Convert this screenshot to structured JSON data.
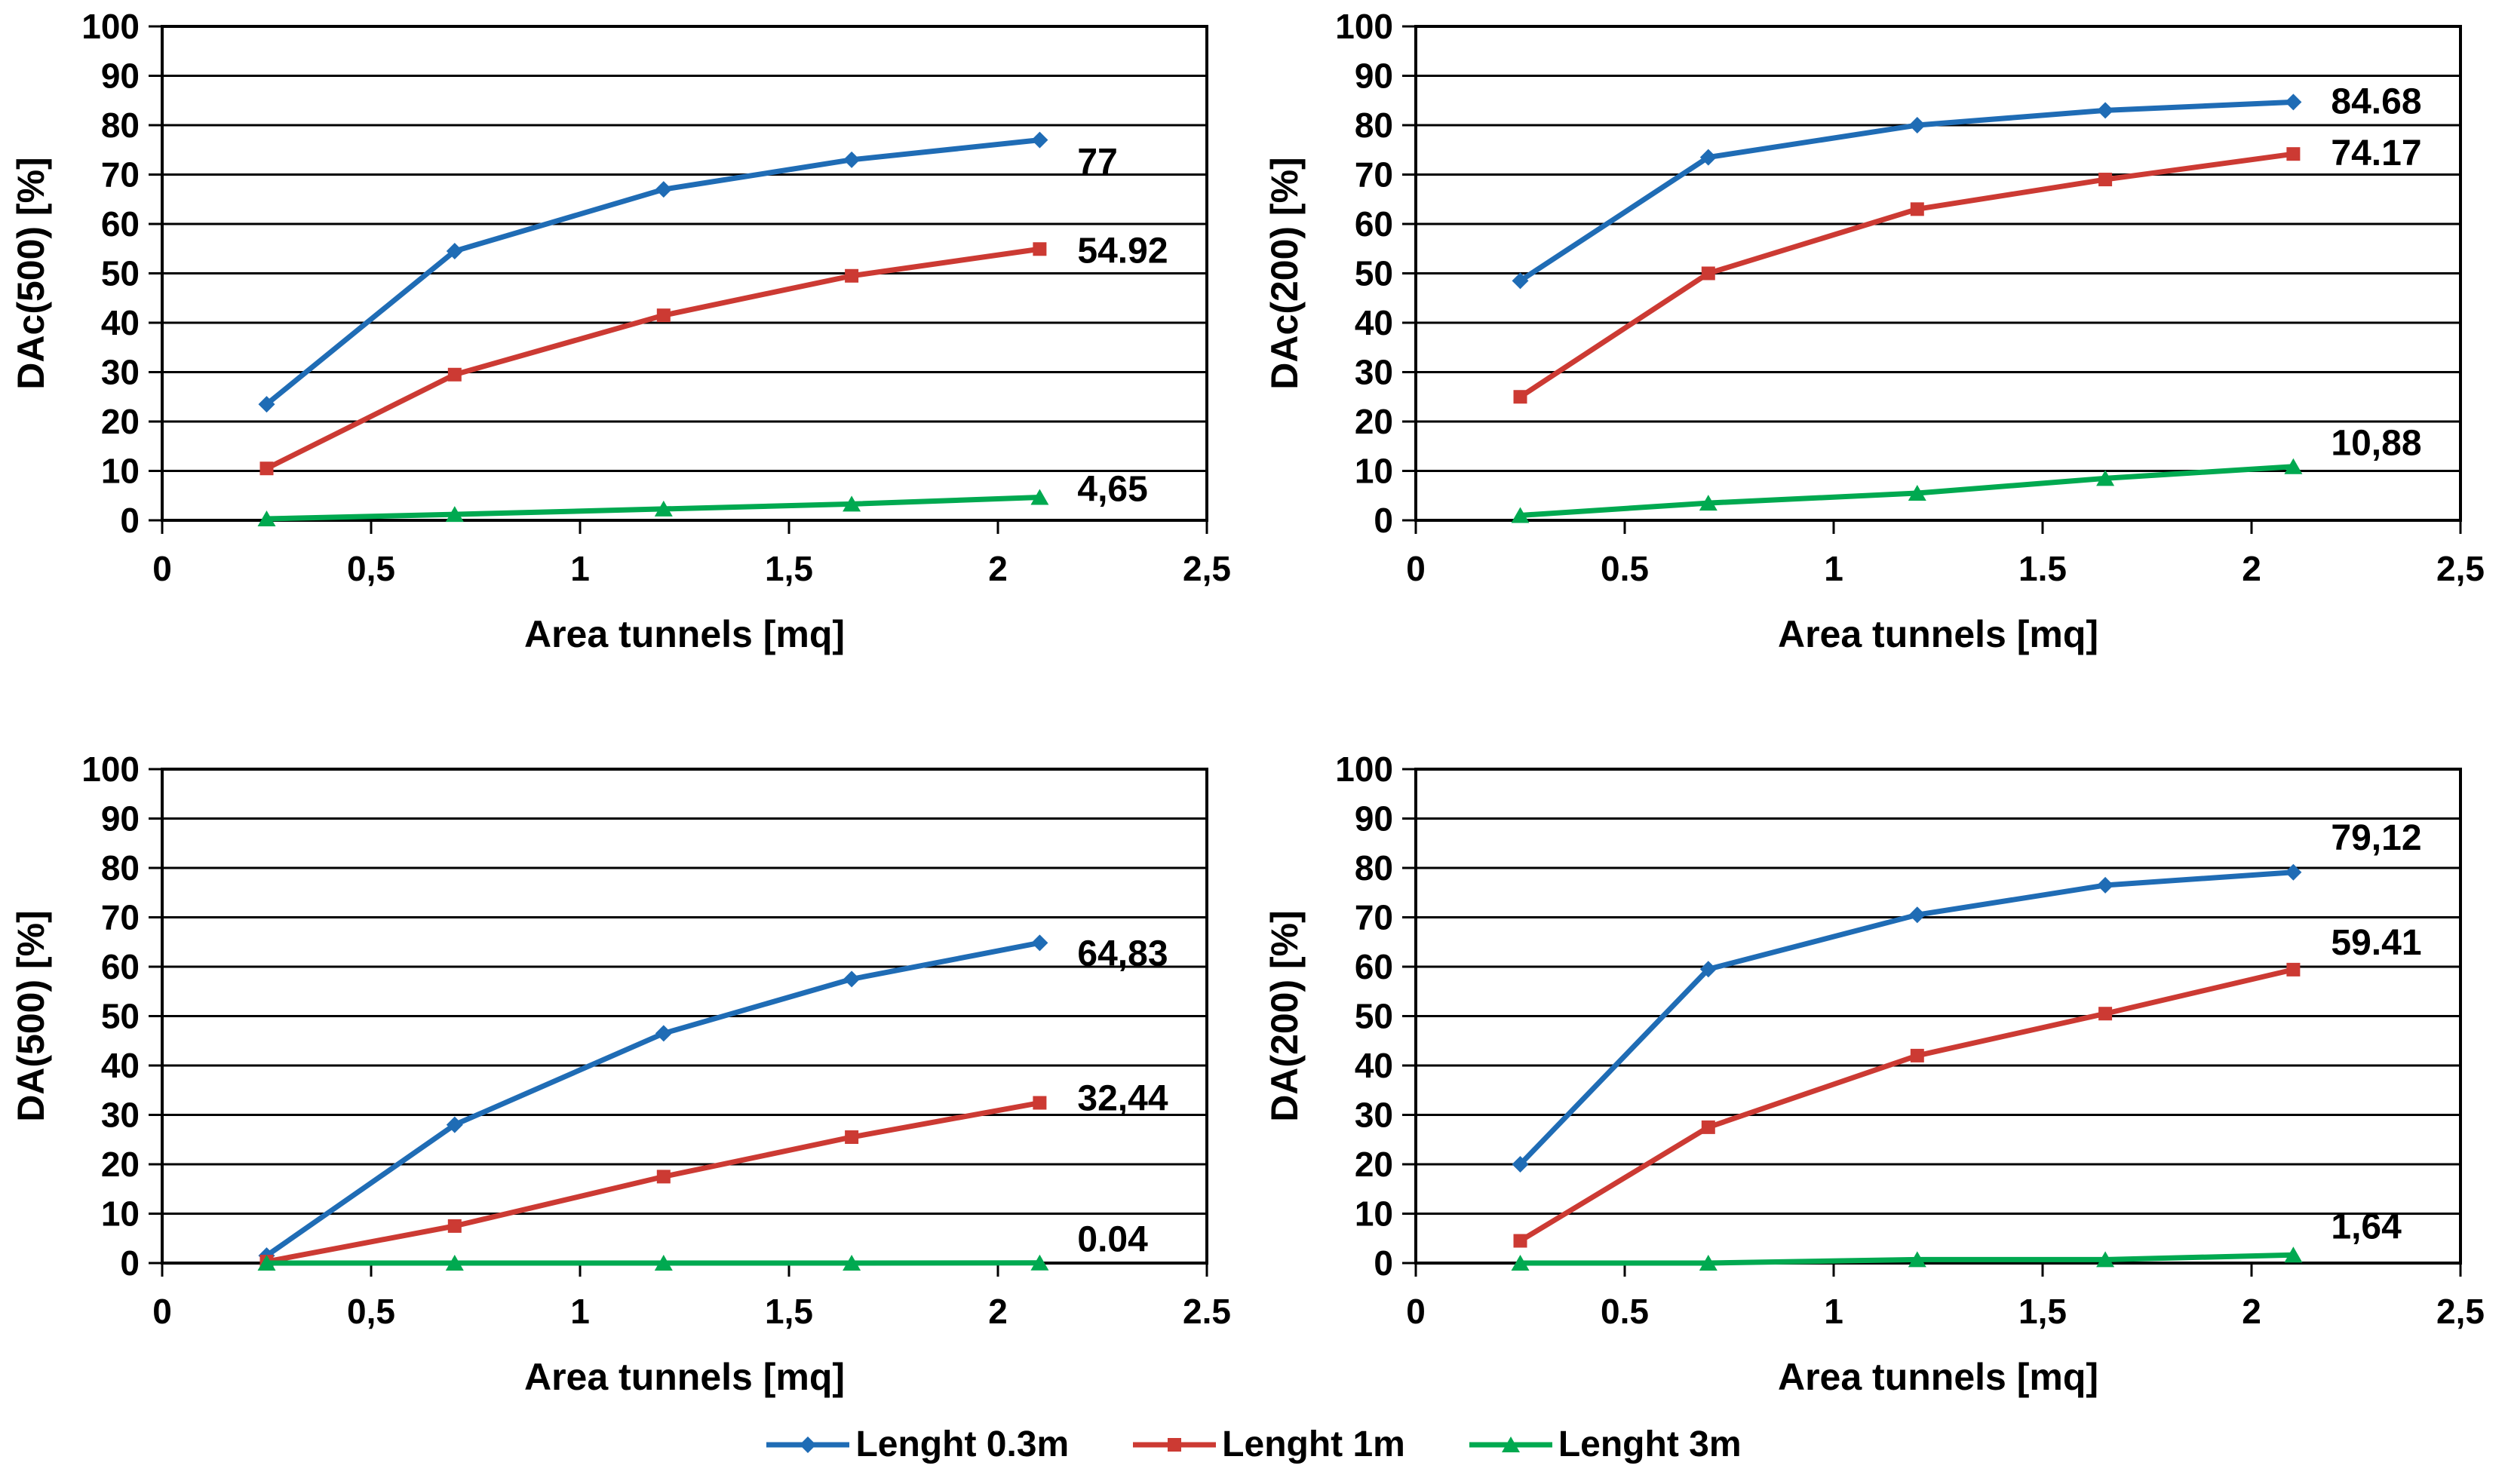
{
  "page": {
    "background": "#ffffff"
  },
  "colors": {
    "blue": "#1F6CB5",
    "red": "#CC3A33",
    "green": "#00A950",
    "axis": "#000000"
  },
  "legend": {
    "items": [
      {
        "label": "Lenght 0.3m",
        "color": "#1F6CB5",
        "marker": "diamond"
      },
      {
        "label": "Lenght 1m",
        "color": "#CC3A33",
        "marker": "square"
      },
      {
        "label": "Lenght 3m",
        "color": "#00A950",
        "marker": "triangle"
      }
    ]
  },
  "chart_data": [
    {
      "type": "line",
      "name": "DAc(500)",
      "ylabel": "DAc(500) [%]",
      "xlabel": "Area tunnels [mq]",
      "xlim": [
        0,
        2.5
      ],
      "ylim": [
        0,
        100
      ],
      "y_tick_step": 10,
      "grid": "horizontal",
      "x_tick_values": [
        0,
        0.5,
        1,
        1.5,
        2,
        2.5
      ],
      "x_tick_labels": [
        "0",
        "0,5",
        "1",
        "1,5",
        "2",
        "2,5"
      ],
      "x": [
        0.25,
        0.7,
        1.2,
        1.65,
        2.1
      ],
      "series": [
        {
          "name": "Lenght 0.3m",
          "color": "#1F6CB5",
          "marker": "diamond",
          "values": [
            23.5,
            54.5,
            67,
            73,
            77
          ],
          "end_label": "77",
          "end_label_dy": 45
        },
        {
          "name": "Lenght 1m",
          "color": "#CC3A33",
          "marker": "square",
          "values": [
            10.5,
            29.5,
            41.5,
            49.5,
            54.92
          ],
          "end_label": "54.92",
          "end_label_dy": 18
        },
        {
          "name": "Lenght 3m",
          "color": "#00A950",
          "marker": "triangle",
          "values": [
            0.3,
            1.2,
            2.3,
            3.3,
            4.65
          ],
          "end_label": "4,65",
          "end_label_dy": 5
        }
      ]
    },
    {
      "type": "line",
      "name": "DAc(200)",
      "ylabel": "DAc(200) [%]",
      "xlabel": "Area tunnels [mq]",
      "xlim": [
        0,
        2.5
      ],
      "ylim": [
        0,
        100
      ],
      "y_tick_step": 10,
      "grid": "horizontal",
      "x_tick_values": [
        0,
        0.5,
        1,
        1.5,
        2,
        2.5
      ],
      "x_tick_labels": [
        "0",
        "0.5",
        "1",
        "1.5",
        "2",
        "2,5"
      ],
      "x": [
        0.25,
        0.7,
        1.2,
        1.65,
        2.1
      ],
      "series": [
        {
          "name": "Lenght 0.3m",
          "color": "#1F6CB5",
          "marker": "diamond",
          "values": [
            48.5,
            73.5,
            80,
            83,
            84.68
          ],
          "end_label": "84.68",
          "end_label_dy": 15
        },
        {
          "name": "Lenght 1m",
          "color": "#CC3A33",
          "marker": "square",
          "values": [
            25,
            50,
            63,
            69,
            74.17
          ],
          "end_label": "74.17",
          "end_label_dy": 15
        },
        {
          "name": "Lenght 3m",
          "color": "#00A950",
          "marker": "triangle",
          "values": [
            1,
            3.5,
            5.5,
            8.5,
            10.88
          ],
          "end_label": "10,88",
          "end_label_dy": -15
        }
      ]
    },
    {
      "type": "line",
      "name": "DA(500)",
      "ylabel": "DA(500) [%]",
      "xlabel": "Area tunnels [mq]",
      "xlim": [
        0,
        2.5
      ],
      "ylim": [
        0,
        100
      ],
      "y_tick_step": 10,
      "grid": "horizontal",
      "x_tick_values": [
        0,
        0.5,
        1,
        1.5,
        2,
        2.5
      ],
      "x_tick_labels": [
        "0",
        "0,5",
        "1",
        "1,5",
        "2",
        "2.5"
      ],
      "x": [
        0.25,
        0.7,
        1.2,
        1.65,
        2.1
      ],
      "series": [
        {
          "name": "Lenght 0.3m",
          "color": "#1F6CB5",
          "marker": "diamond",
          "values": [
            1.5,
            28,
            46.5,
            57.5,
            64.83
          ],
          "end_label": "64,83",
          "end_label_dy": 30
        },
        {
          "name": "Lenght 1m",
          "color": "#CC3A33",
          "marker": "square",
          "values": [
            0.3,
            7.5,
            17.5,
            25.5,
            32.44
          ],
          "end_label": "32,44",
          "end_label_dy": 10
        },
        {
          "name": "Lenght 3m",
          "color": "#00A950",
          "marker": "triangle",
          "values": [
            0,
            0,
            0,
            0,
            0.04
          ],
          "end_label": "0.04",
          "end_label_dy": -15
        }
      ]
    },
    {
      "type": "line",
      "name": "DA(200)",
      "ylabel": "DA(200) [%]",
      "xlabel": "Area tunnels [mq]",
      "xlim": [
        0,
        2.5
      ],
      "ylim": [
        0,
        100
      ],
      "y_tick_step": 10,
      "grid": "horizontal",
      "x_tick_values": [
        0,
        0.5,
        1,
        1.5,
        2,
        2.5
      ],
      "x_tick_labels": [
        "0",
        "0.5",
        "1",
        "1,5",
        "2",
        "2,5"
      ],
      "x": [
        0.25,
        0.7,
        1.2,
        1.65,
        2.1
      ],
      "series": [
        {
          "name": "Lenght 0.3m",
          "color": "#1F6CB5",
          "marker": "diamond",
          "values": [
            20,
            59.5,
            70.5,
            76.5,
            79.12
          ],
          "end_label": "79,12",
          "end_label_dy": -30
        },
        {
          "name": "Lenght 1m",
          "color": "#CC3A33",
          "marker": "square",
          "values": [
            4.5,
            27.5,
            42,
            50.5,
            59.41
          ],
          "end_label": "59.41",
          "end_label_dy": -20
        },
        {
          "name": "Lenght 3m",
          "color": "#00A950",
          "marker": "triangle",
          "values": [
            0,
            0,
            0.7,
            0.7,
            1.64
          ],
          "end_label": "1,64",
          "end_label_dy": -22
        }
      ]
    }
  ]
}
